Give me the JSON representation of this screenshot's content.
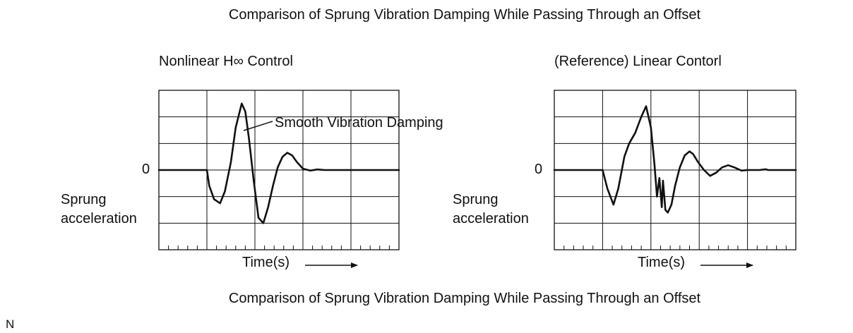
{
  "figure": {
    "title_top": "Comparison of Sprung Vibration Damping While Passing Through an Offset",
    "title_bottom": "Comparison of Sprung Vibration Damping While Passing Through an Offset",
    "footer_letter": "N",
    "colors": {
      "ink": "#111111",
      "background": "#ffffff"
    }
  },
  "chart_data": [
    {
      "type": "line",
      "title": "Nonlinear H∞ Control",
      "xlabel": "Time(s)",
      "ylabel_line1": "Sprung",
      "ylabel_line2": "acceleration",
      "zero_label": "0",
      "annotation": "Smooth Vibration Damping",
      "xlim": [
        0,
        10
      ],
      "ylim": [
        -3,
        3
      ],
      "grid": true,
      "series": [
        {
          "x": [
            0,
            2.0,
            2.1,
            2.3,
            2.55,
            2.75,
            3.0,
            3.2,
            3.45,
            3.6,
            3.75,
            3.95,
            4.15,
            4.35,
            4.55,
            4.75,
            4.95,
            5.15,
            5.35,
            5.55,
            5.75,
            6.0,
            6.3,
            6.6,
            6.9,
            7.4,
            10
          ],
          "y": [
            0,
            0,
            -0.6,
            -1.1,
            -1.25,
            -0.8,
            0.3,
            1.6,
            2.5,
            2.2,
            1.2,
            -0.4,
            -1.8,
            -2.0,
            -1.4,
            -0.6,
            0.1,
            0.5,
            0.65,
            0.55,
            0.3,
            0.05,
            -0.02,
            0.02,
            0.0,
            0.0,
            0.0
          ]
        }
      ]
    },
    {
      "type": "line",
      "title": "(Reference) Linear Contorl",
      "xlabel": "Time(s)",
      "ylabel_line1": "Sprung",
      "ylabel_line2": "acceleration",
      "zero_label": "0",
      "xlim": [
        0,
        10
      ],
      "ylim": [
        -3,
        3
      ],
      "grid": true,
      "series": [
        {
          "x": [
            0,
            2.0,
            2.2,
            2.45,
            2.65,
            2.9,
            3.1,
            3.35,
            3.6,
            3.8,
            4.0,
            4.15,
            4.25,
            4.35,
            4.45,
            4.5,
            4.6,
            4.7,
            4.85,
            5.0,
            5.2,
            5.4,
            5.6,
            5.75,
            5.95,
            6.2,
            6.45,
            6.7,
            6.95,
            7.2,
            7.45,
            7.75,
            8.0,
            8.5,
            8.75,
            8.85,
            9.0,
            10
          ],
          "y": [
            0,
            0,
            -0.7,
            -1.3,
            -0.7,
            0.5,
            1.0,
            1.4,
            2.0,
            2.4,
            1.6,
            0.2,
            -1.0,
            -0.3,
            -1.4,
            -0.4,
            -1.5,
            -1.6,
            -1.3,
            -0.6,
            0.1,
            0.55,
            0.7,
            0.6,
            0.3,
            0.0,
            -0.22,
            -0.1,
            0.1,
            0.18,
            0.1,
            -0.02,
            0.0,
            0.0,
            0.03,
            0.0,
            0.0,
            0.0
          ]
        }
      ]
    }
  ]
}
